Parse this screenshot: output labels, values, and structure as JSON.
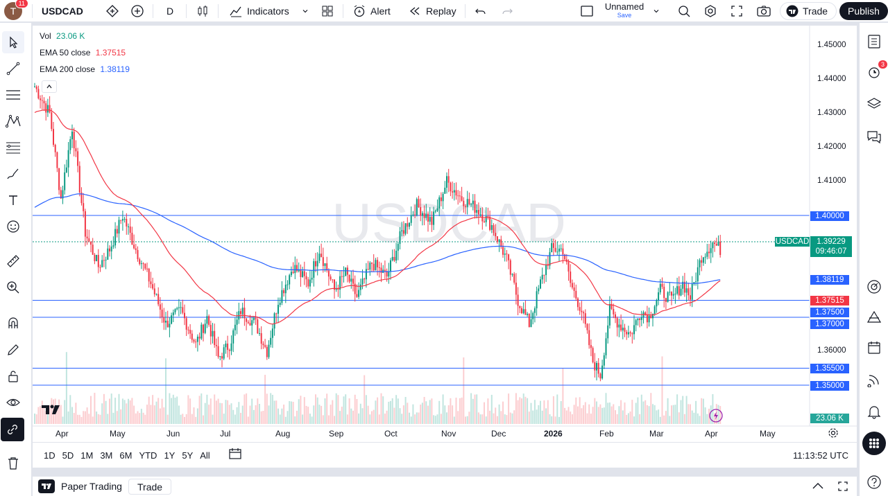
{
  "header": {
    "avatar_letter": "T",
    "avatar_badge": "11",
    "symbol": "USDCAD",
    "interval": "D",
    "indicators_label": "Indicators",
    "alert_label": "Alert",
    "replay_label": "Replay",
    "layout_name": "Unnamed",
    "layout_save": "Save",
    "trade_label": "Trade",
    "publish_label": "Publish"
  },
  "legend": {
    "vol_label": "Vol",
    "vol_value": "23.06 K",
    "ema50_label": "EMA 50 close",
    "ema50_value": "1.37515",
    "ema200_label": "EMA 200 close",
    "ema200_value": "1.38119"
  },
  "watermark": "USDCAD",
  "colors": {
    "up": "#089981",
    "down": "#f23645",
    "ema50": "#f23645",
    "ema200": "#2962ff",
    "hline": "#2962ff",
    "last": "#089981"
  },
  "price_axis": [
    "1.45000",
    "1.44000",
    "1.43000",
    "1.42000",
    "1.41000",
    "1.40000",
    "1.36000",
    "1.35500",
    "1.35000"
  ],
  "price_labels": {
    "symbol_tag": "USDCAD",
    "last_price": "1.39229",
    "countdown": "09:46:07",
    "ema200": "1.38119",
    "ema50": "1.37515",
    "level_1": "1.40000",
    "level_2": "1.37500",
    "level_3": "1.37000",
    "level_4": "1.35500",
    "level_5": "1.35000",
    "volume": "23.06 K"
  },
  "time_axis": [
    "Apr",
    "May",
    "Jun",
    "Jul",
    "Aug",
    "Sep",
    "Oct",
    "Nov",
    "Dec",
    "2026",
    "Feb",
    "Mar",
    "Apr",
    "May"
  ],
  "ranges": [
    "1D",
    "5D",
    "1M",
    "3M",
    "6M",
    "YTD",
    "1Y",
    "5Y",
    "All"
  ],
  "clock": "11:13:52 UTC",
  "bottom": {
    "paper_trading": "Paper Trading",
    "trade_tab": "Trade"
  },
  "right_badge": "3",
  "chart_data": {
    "type": "candlestick",
    "ylim": [
      1.345,
      1.455
    ],
    "horizontal_levels": [
      1.4,
      1.375,
      1.37,
      1.355,
      1.35
    ],
    "last": 1.39229,
    "ema50_last": 1.37515,
    "ema200_last": 1.38119,
    "path": [
      [
        0,
        1.438
      ],
      [
        8,
        1.43
      ],
      [
        14,
        1.405
      ],
      [
        20,
        1.426
      ],
      [
        27,
        1.395
      ],
      [
        34,
        1.385
      ],
      [
        40,
        1.39
      ],
      [
        47,
        1.4
      ],
      [
        54,
        1.39
      ],
      [
        62,
        1.38
      ],
      [
        70,
        1.368
      ],
      [
        78,
        1.372
      ],
      [
        86,
        1.362
      ],
      [
        92,
        1.37
      ],
      [
        98,
        1.358
      ],
      [
        104,
        1.362
      ],
      [
        110,
        1.372
      ],
      [
        118,
        1.368
      ],
      [
        124,
        1.36
      ],
      [
        130,
        1.375
      ],
      [
        138,
        1.385
      ],
      [
        146,
        1.38
      ],
      [
        152,
        1.39
      ],
      [
        160,
        1.378
      ],
      [
        166,
        1.383
      ],
      [
        172,
        1.376
      ],
      [
        180,
        1.386
      ],
      [
        188,
        1.382
      ],
      [
        196,
        1.395
      ],
      [
        204,
        1.403
      ],
      [
        212,
        1.398
      ],
      [
        220,
        1.41
      ],
      [
        228,
        1.405
      ],
      [
        236,
        1.402
      ],
      [
        244,
        1.397
      ],
      [
        252,
        1.387
      ],
      [
        258,
        1.375
      ],
      [
        264,
        1.368
      ],
      [
        270,
        1.38
      ],
      [
        276,
        1.39
      ],
      [
        282,
        1.39
      ],
      [
        286,
        1.38
      ],
      [
        292,
        1.372
      ],
      [
        298,
        1.357
      ],
      [
        302,
        1.353
      ],
      [
        307,
        1.372
      ],
      [
        312,
        1.368
      ],
      [
        318,
        1.365
      ],
      [
        324,
        1.372
      ],
      [
        328,
        1.37
      ],
      [
        334,
        1.378
      ],
      [
        340,
        1.375
      ],
      [
        346,
        1.38
      ],
      [
        350,
        1.376
      ],
      [
        356,
        1.388
      ],
      [
        362,
        1.392
      ],
      [
        366,
        1.39
      ]
    ]
  }
}
